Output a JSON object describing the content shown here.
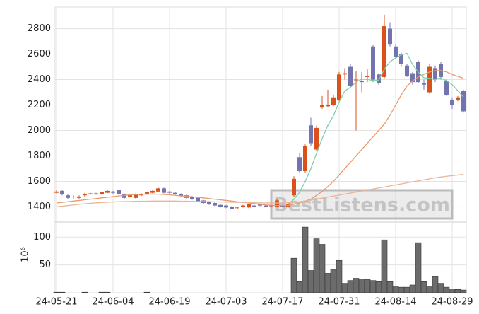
{
  "chart_data": {
    "type": "candlestick",
    "categories": [
      "24-05-21",
      null,
      null,
      null,
      null,
      null,
      null,
      null,
      null,
      null,
      "24-06-04",
      null,
      null,
      null,
      null,
      null,
      null,
      null,
      null,
      null,
      "24-06-19",
      null,
      null,
      null,
      null,
      null,
      null,
      null,
      null,
      null,
      "24-07-03",
      null,
      null,
      null,
      null,
      null,
      null,
      null,
      null,
      null,
      "24-07-17",
      null,
      null,
      null,
      null,
      null,
      null,
      null,
      null,
      null,
      "24-07-31",
      null,
      null,
      null,
      null,
      null,
      null,
      null,
      null,
      null,
      "24-08-14",
      null,
      null,
      null,
      null,
      null,
      null,
      null,
      null,
      null,
      "24-08-29",
      null,
      null
    ],
    "open": [
      1510,
      1525,
      1490,
      1480,
      1470,
      1490,
      1500,
      1505,
      1500,
      1510,
      1520,
      1530,
      1500,
      1480,
      1470,
      1490,
      1500,
      1510,
      1520,
      1545,
      1520,
      1510,
      1500,
      1490,
      1480,
      1470,
      1450,
      1440,
      1430,
      1415,
      1410,
      1400,
      1390,
      1400,
      1395,
      1410,
      1420,
      1410,
      1405,
      1400,
      1410,
      1400,
      1490,
      1790,
      1680,
      2040,
      1850,
      2180,
      2190,
      2200,
      2240,
      2440,
      2500,
      2400,
      2390,
      2420,
      2660,
      2440,
      2420,
      2800,
      2660,
      2600,
      2510,
      2450,
      2540,
      2370,
      2300,
      2490,
      2520,
      2390,
      2240,
      2240,
      2310
    ],
    "high": [
      1530,
      1530,
      1500,
      1490,
      1490,
      1510,
      1510,
      1510,
      1520,
      1535,
      1525,
      1535,
      1505,
      1495,
      1505,
      1505,
      1520,
      1530,
      1550,
      1550,
      1525,
      1515,
      1505,
      1495,
      1485,
      1475,
      1455,
      1445,
      1435,
      1420,
      1415,
      1405,
      1400,
      1415,
      1425,
      1415,
      1425,
      1415,
      1415,
      1460,
      1415,
      1430,
      1640,
      1820,
      1890,
      2100,
      2040,
      2270,
      2320,
      2280,
      2460,
      2490,
      2520,
      2470,
      2460,
      2480,
      2670,
      2450,
      2910,
      2850,
      2680,
      2610,
      2520,
      2460,
      2550,
      2400,
      2520,
      2510,
      2540,
      2400,
      2260,
      2270,
      2320
    ],
    "low": [
      1505,
      1490,
      1460,
      1465,
      1465,
      1480,
      1495,
      1495,
      1495,
      1505,
      1500,
      1495,
      1465,
      1475,
      1465,
      1485,
      1495,
      1505,
      1515,
      1505,
      1500,
      1495,
      1480,
      1465,
      1455,
      1435,
      1425,
      1415,
      1405,
      1395,
      1390,
      1380,
      1385,
      1395,
      1390,
      1395,
      1405,
      1395,
      1400,
      1395,
      1395,
      1395,
      1480,
      1670,
      1670,
      1880,
      1840,
      2170,
      2180,
      2190,
      2230,
      2400,
      2340,
      2000,
      2300,
      2380,
      2380,
      2360,
      2410,
      2660,
      2560,
      2500,
      2420,
      2360,
      2370,
      2320,
      2290,
      2380,
      2400,
      2270,
      2170,
      2230,
      2140
    ],
    "close": [
      1520,
      1500,
      1470,
      1475,
      1480,
      1500,
      1505,
      1500,
      1515,
      1525,
      1510,
      1500,
      1470,
      1490,
      1500,
      1500,
      1515,
      1525,
      1545,
      1510,
      1510,
      1500,
      1485,
      1470,
      1460,
      1440,
      1430,
      1420,
      1410,
      1400,
      1395,
      1385,
      1395,
      1410,
      1420,
      1400,
      1410,
      1400,
      1410,
      1450,
      1400,
      1420,
      1620,
      1680,
      1880,
      1900,
      2020,
      2200,
      2200,
      2260,
      2440,
      2450,
      2350,
      2400,
      2380,
      2430,
      2400,
      2370,
      2820,
      2680,
      2580,
      2520,
      2430,
      2380,
      2380,
      2360,
      2500,
      2400,
      2420,
      2280,
      2200,
      2260,
      2150
    ],
    "up_color": "#d9521c",
    "down_color": "#7274b0",
    "ylim": [
      1280,
      2970
    ],
    "yticks": [
      1400,
      1600,
      1800,
      2000,
      2200,
      2400,
      2600,
      2800
    ],
    "grid": true,
    "lines": [
      {
        "color": "#7fcfa8",
        "values": [
          null,
          null,
          null,
          null,
          null,
          null,
          null,
          null,
          null,
          null,
          null,
          null,
          null,
          null,
          null,
          null,
          null,
          null,
          null,
          null,
          null,
          null,
          null,
          null,
          null,
          null,
          null,
          null,
          null,
          null,
          null,
          null,
          null,
          null,
          null,
          null,
          null,
          null,
          null,
          null,
          null,
          1420,
          1460,
          1514,
          1600,
          1700,
          1820,
          1936,
          2040,
          2116,
          2224,
          2310,
          2340,
          2380,
          2404,
          2402,
          2392,
          2396,
          2480,
          2540,
          2570,
          2594,
          2606,
          2518,
          2458,
          2414,
          2410,
          2404,
          2412,
          2392,
          2360,
          2312,
          2262
        ]
      },
      {
        "color": "#e99a6e",
        "values": [
          1430,
          1435,
          1440,
          1445,
          1450,
          1455,
          1460,
          1465,
          1470,
          1475,
          1480,
          1485,
          1490,
          1493,
          1496,
          1498,
          1500,
          1500,
          1499,
          1497,
          1494,
          1490,
          1486,
          1482,
          1478,
          1474,
          1470,
          1465,
          1460,
          1455,
          1450,
          1445,
          1440,
          1435,
          1430,
          1425,
          1420,
          1415,
          1412,
          1410,
          1410,
          1412,
          1420,
          1430,
          1445,
          1460,
          1490,
          1520,
          1560,
          1600,
          1650,
          1700,
          1750,
          1800,
          1850,
          1900,
          1950,
          2000,
          2050,
          2120,
          2200,
          2280,
          2350,
          2390,
          2420,
          2440,
          2460,
          2470,
          2470,
          2460,
          2440,
          2425,
          2410
        ]
      },
      {
        "color": "#eab497",
        "values": [
          1400,
          1405,
          1410,
          1415,
          1420,
          1424,
          1428,
          1431,
          1434,
          1436,
          1438,
          1440,
          1441,
          1442,
          1443,
          1444,
          1444,
          1445,
          1445,
          1445,
          1445,
          1445,
          1444,
          1444,
          1443,
          1442,
          1441,
          1440,
          1439,
          1438,
          1437,
          1436,
          1435,
          1434,
          1433,
          1432,
          1431,
          1430,
          1430,
          1430,
          1430,
          1432,
          1436,
          1440,
          1446,
          1452,
          1460,
          1468,
          1476,
          1484,
          1492,
          1500,
          1508,
          1516,
          1524,
          1532,
          1540,
          1548,
          1556,
          1564,
          1572,
          1580,
          1588,
          1596,
          1604,
          1612,
          1620,
          1628,
          1634,
          1640,
          1645,
          1650,
          1655
        ]
      }
    ],
    "volume": {
      "ylabel": "10⁶",
      "color": "#6b6b6b",
      "values": [
        1,
        1,
        0,
        0,
        0,
        1,
        0,
        0,
        1,
        1,
        0,
        0,
        0,
        0,
        0,
        0,
        1,
        0,
        0,
        0,
        0,
        0,
        0,
        0,
        0,
        0,
        0,
        0,
        0,
        0,
        0,
        0,
        0,
        0,
        0,
        0,
        0,
        0,
        0,
        0,
        0,
        0,
        62,
        20,
        118,
        40,
        97,
        87,
        35,
        42,
        58,
        17,
        22,
        26,
        25,
        24,
        22,
        20,
        95,
        20,
        12,
        10,
        10,
        14,
        90,
        20,
        12,
        30,
        17,
        10,
        7,
        6,
        5
      ],
      "ylim": [
        0,
        127
      ],
      "yticks": [
        50,
        100
      ]
    },
    "watermark": "BestListens.com"
  }
}
